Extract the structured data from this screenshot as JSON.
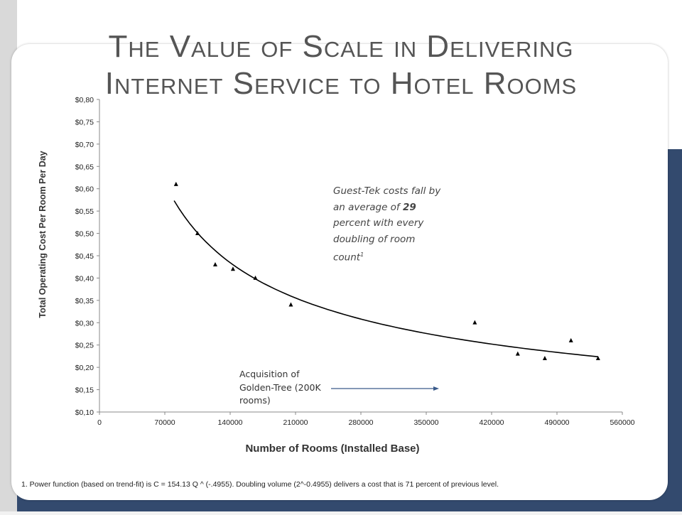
{
  "slide": {
    "title_line1": "The Value of Scale in Delivering",
    "title_line2": "Internet Service to Hotel Rooms",
    "footnote": "1.  Power function (based on trend-fit) is C = 154.13 Q ^ (-.4955). Doubling volume (2^-0.4955) delivers a cost that is 71 percent of previous level."
  },
  "annotations": {
    "main_prefix": "Guest-Tek costs fall by an average of ",
    "main_bold": "29",
    "main_suffix": " percent with every doubling of room count",
    "main_sup": "1",
    "acquisition": "Acquisition of Golden-Tree (200K rooms)"
  },
  "colors": {
    "accent_band": "#334a6e",
    "title_text": "#555555",
    "marker": "#000000"
  },
  "chart_data": {
    "type": "scatter",
    "title": "",
    "xlabel": "Number of Rooms (Installed Base)",
    "ylabel": "Total Operating Cost Per Room Per Day",
    "xlim": [
      0,
      560000
    ],
    "ylim": [
      0.1,
      0.8
    ],
    "x_ticks": [
      "0",
      "70000",
      "140000",
      "210000",
      "280000",
      "350000",
      "420000",
      "490000",
      "560000"
    ],
    "y_ticks": [
      "$0,10",
      "$0,15",
      "$0,20",
      "$0,25",
      "$0,30",
      "$0,35",
      "$0,40",
      "$0,45",
      "$0,50",
      "$0,55",
      "$0,60",
      "$0,65",
      "$0,70",
      "$0,75",
      "$0,80"
    ],
    "grid": false,
    "series": [
      {
        "marker": "triangle",
        "x": [
          82000,
          105000,
          124000,
          143000,
          167000,
          205000,
          402000,
          448000,
          477000,
          505000,
          534000
        ],
        "y": [
          0.61,
          0.5,
          0.43,
          0.42,
          0.4,
          0.34,
          0.3,
          0.23,
          0.22,
          0.26,
          0.22
        ]
      }
    ],
    "trendline": {
      "type": "power",
      "a": 154.13,
      "b": -0.4955,
      "x_range": [
        80000,
        534000
      ]
    }
  }
}
